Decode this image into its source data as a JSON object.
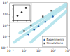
{
  "chart_data": [
    {
      "type": "scatter",
      "log": true,
      "legend": "lower right",
      "xlim": [
        0.1,
        1000
      ],
      "ylim": [
        0.1,
        1000
      ],
      "xticks": [
        {
          "value": 0.1,
          "label": "10⁻¹"
        },
        {
          "value": 1,
          "label": "10⁰"
        },
        {
          "value": 10,
          "label": "10¹"
        },
        {
          "value": 100,
          "label": "10²"
        },
        {
          "value": 1000,
          "label": "10³"
        }
      ],
      "yticks": [
        {
          "value": 0.1,
          "label": "10⁻¹"
        },
        {
          "value": 1,
          "label": "10⁰"
        },
        {
          "value": 10,
          "label": "10¹"
        },
        {
          "value": 100,
          "label": "10²"
        },
        {
          "value": 1000,
          "label": "10³"
        }
      ],
      "series": [
        {
          "type": "line",
          "color": "#a8dfe9",
          "x": [
            0.2,
            1000
          ],
          "values": [
            0.3,
            600
          ]
        },
        {
          "type": "line",
          "color": "#a8dfe9",
          "x": [
            0.5,
            1000
          ],
          "values": [
            2,
            900
          ]
        },
        {
          "type": "line",
          "color": "#a8dfe9",
          "x": [
            3,
            1000
          ],
          "values": [
            0.3,
            200
          ]
        },
        {
          "name": "Experiments",
          "type": "scatter",
          "marker": "circle",
          "color": "#1f5fa8",
          "x": [
            2,
            5,
            10,
            30,
            100
          ],
          "values": [
            1.5,
            4,
            8,
            20,
            60
          ]
        },
        {
          "name": "Simulations",
          "type": "scatter",
          "marker": "square",
          "color": "#555555",
          "x": [
            1,
            3,
            20,
            80
          ],
          "values": [
            3,
            10,
            60,
            200
          ]
        }
      ]
    },
    {
      "type": "scatter",
      "tick_labels": false,
      "xlim": [
        0,
        4
      ],
      "ylim": [
        0,
        4
      ],
      "xticks": [
        0,
        1,
        2,
        3,
        4
      ],
      "yticks": [
        0,
        1,
        2,
        3,
        4
      ],
      "series": [
        {
          "type": "scatter",
          "marker": "circle",
          "color": "#222222",
          "x": [
            1,
            2,
            3
          ],
          "values": [
            1.2,
            2.1,
            3.2
          ]
        }
      ]
    }
  ]
}
